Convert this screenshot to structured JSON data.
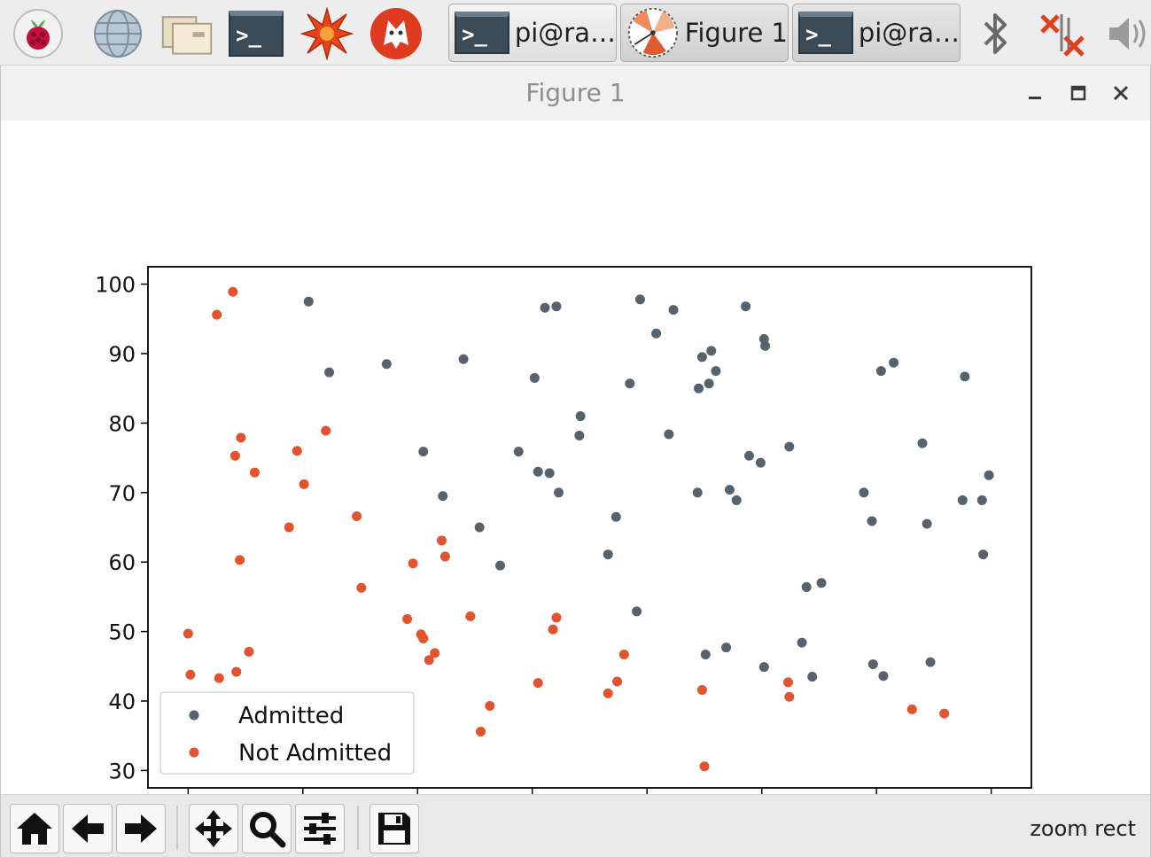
{
  "taskbar": {
    "launchers": [
      "raspberry-menu-icon",
      "web-browser-icon",
      "file-manager-icon",
      "terminal-icon",
      "mathematica-icon",
      "wolfram-icon"
    ],
    "tasks": [
      {
        "label": "pi@ra…",
        "icon": "terminal-icon"
      },
      {
        "label": "Figure 1",
        "icon": "figure-icon"
      },
      {
        "label": "pi@ra…",
        "icon": "terminal-icon"
      }
    ],
    "tray": [
      "bluetooth-icon",
      "network-disconnected-icon",
      "volume-icon"
    ]
  },
  "window": {
    "title": "Figure 1",
    "controls": [
      "minimize",
      "maximize",
      "close"
    ]
  },
  "toolbar": {
    "tools": [
      "home-icon",
      "back-icon",
      "forward-icon",
      "pan-icon",
      "zoom-icon",
      "configure-subplots-icon",
      "save-icon"
    ],
    "status": "zoom rect"
  },
  "colors": {
    "admitted": "#56636e",
    "not_admitted": "#e2532e"
  },
  "chart_data": {
    "type": "scatter",
    "title": "",
    "xlabel": "",
    "ylabel": "",
    "xlim": [
      26.5,
      103.5
    ],
    "ylim": [
      27.5,
      102.5
    ],
    "xticks": [
      30,
      40,
      50,
      60,
      70,
      80,
      90,
      100
    ],
    "yticks": [
      30,
      40,
      50,
      60,
      70,
      80,
      90,
      100
    ],
    "grid": false,
    "legend": "lower-left",
    "series": [
      {
        "name": "Admitted",
        "points": [
          [
            40.5,
            97.5
          ],
          [
            42.3,
            87.3
          ],
          [
            47.3,
            88.5
          ],
          [
            50.5,
            75.9
          ],
          [
            52.2,
            69.5
          ],
          [
            54.0,
            89.2
          ],
          [
            55.4,
            65.0
          ],
          [
            57.2,
            59.5
          ],
          [
            58.8,
            75.9
          ],
          [
            60.2,
            86.5
          ],
          [
            60.5,
            73.0
          ],
          [
            61.1,
            96.6
          ],
          [
            61.5,
            72.8
          ],
          [
            62.1,
            96.8
          ],
          [
            62.3,
            70.0
          ],
          [
            64.2,
            81.0
          ],
          [
            64.1,
            78.2
          ],
          [
            66.6,
            61.1
          ],
          [
            67.3,
            66.5
          ],
          [
            68.5,
            85.7
          ],
          [
            69.1,
            52.9
          ],
          [
            69.4,
            97.8
          ],
          [
            70.8,
            92.9
          ],
          [
            71.9,
            78.4
          ],
          [
            72.3,
            96.3
          ],
          [
            74.4,
            70.0
          ],
          [
            74.5,
            85.0
          ],
          [
            74.8,
            89.5
          ],
          [
            75.1,
            46.7
          ],
          [
            75.4,
            85.7
          ],
          [
            75.6,
            90.4
          ],
          [
            76.0,
            87.5
          ],
          [
            76.9,
            47.7
          ],
          [
            77.2,
            70.4
          ],
          [
            77.8,
            68.9
          ],
          [
            78.6,
            96.8
          ],
          [
            78.9,
            75.3
          ],
          [
            79.9,
            74.3
          ],
          [
            80.2,
            92.1
          ],
          [
            80.3,
            91.1
          ],
          [
            80.2,
            44.9
          ],
          [
            82.4,
            76.6
          ],
          [
            83.5,
            48.4
          ],
          [
            83.9,
            56.4
          ],
          [
            84.4,
            43.5
          ],
          [
            85.2,
            57.0
          ],
          [
            88.9,
            70.0
          ],
          [
            89.6,
            65.9
          ],
          [
            89.7,
            45.3
          ],
          [
            90.4,
            87.5
          ],
          [
            90.6,
            43.6
          ],
          [
            91.5,
            88.7
          ],
          [
            94.0,
            77.1
          ],
          [
            94.4,
            65.5
          ],
          [
            94.7,
            45.6
          ],
          [
            97.5,
            68.9
          ],
          [
            97.7,
            86.7
          ],
          [
            99.2,
            68.9
          ],
          [
            99.3,
            61.1
          ],
          [
            99.8,
            72.5
          ]
        ]
      },
      {
        "name": "Not Admitted",
        "points": [
          [
            30.0,
            49.7
          ],
          [
            30.2,
            43.8
          ],
          [
            32.5,
            95.6
          ],
          [
            32.7,
            43.3
          ],
          [
            33.9,
            98.9
          ],
          [
            34.1,
            75.3
          ],
          [
            34.2,
            44.2
          ],
          [
            34.5,
            60.3
          ],
          [
            34.6,
            77.9
          ],
          [
            35.3,
            47.1
          ],
          [
            35.8,
            72.9
          ],
          [
            38.8,
            65.0
          ],
          [
            39.5,
            76.0
          ],
          [
            40.1,
            71.2
          ],
          [
            42.0,
            78.9
          ],
          [
            44.7,
            66.6
          ],
          [
            45.1,
            56.3
          ],
          [
            49.1,
            51.8
          ],
          [
            49.6,
            59.8
          ],
          [
            50.3,
            49.6
          ],
          [
            50.5,
            49.0
          ],
          [
            51.0,
            45.9
          ],
          [
            51.5,
            46.9
          ],
          [
            52.1,
            63.1
          ],
          [
            52.4,
            60.8
          ],
          [
            54.6,
            52.2
          ],
          [
            55.5,
            35.6
          ],
          [
            56.3,
            39.3
          ],
          [
            60.5,
            42.6
          ],
          [
            61.8,
            50.3
          ],
          [
            62.1,
            52.0
          ],
          [
            66.6,
            41.1
          ],
          [
            67.4,
            42.8
          ],
          [
            68.0,
            46.7
          ],
          [
            74.8,
            41.6
          ],
          [
            75.0,
            30.6
          ],
          [
            82.3,
            42.7
          ],
          [
            82.4,
            40.6
          ],
          [
            93.1,
            38.8
          ],
          [
            95.9,
            38.2
          ]
        ]
      }
    ]
  }
}
